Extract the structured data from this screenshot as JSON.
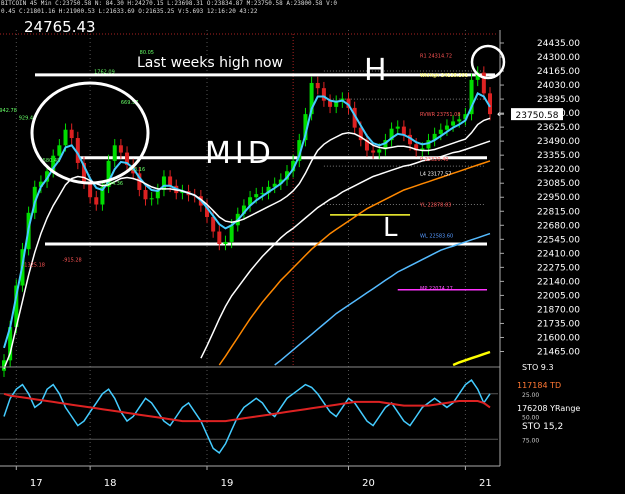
{
  "header": {
    "line1": "BITCOIN 45 Min C:23750.58 N: 84.30 H:24270.15 L:23698.31 O:23834.87 M:23750.58 A:23800.58 V:0",
    "line2": "0.45 C:21801.16 H:21900.53 L:21633.69 O:21635.25 V:5.693 12:16:20 43:22",
    "price": "24765.43"
  },
  "chart_data": {
    "type": "line",
    "title": "",
    "x_ticks": [
      "17",
      "18",
      "19",
      "20",
      "21"
    ],
    "y_ticks": [
      "24435.00",
      "24300.00",
      "24165.00",
      "24030.00",
      "23895.00",
      "23760.00",
      "23625.00",
      "23490.00",
      "23355.00",
      "23220.00",
      "23085.00",
      "22950.00",
      "22815.00",
      "22680.00",
      "22545.00",
      "22410.00",
      "22275.00",
      "22140.00",
      "22005.00",
      "21870.00",
      "21735.00",
      "21600.00",
      "21465.00"
    ],
    "ylim": [
      21335,
      24560
    ],
    "last_price_label": "23750.58",
    "annotations": {
      "last_weeks_high": "Last weeks high now",
      "h_label": "H",
      "mid_label": "MID",
      "l_label": "L"
    },
    "hlines": [
      {
        "name": "last-weeks-high-line",
        "y": 24128,
        "color": "#ffffff"
      },
      {
        "name": "mid-line",
        "y": 23330,
        "color": "#ffffff"
      },
      {
        "name": "low-line",
        "y": 22500,
        "color": "#ffffff"
      },
      {
        "name": "yellow-level",
        "y": 22780,
        "color": "#ffff33"
      },
      {
        "name": "magenta-level",
        "y": 22060,
        "color": "#ff33ff"
      }
    ],
    "level_labels": [
      {
        "text": "R1 24314.72",
        "y": 24314,
        "color": "#ff5555"
      },
      {
        "text": "WkHigh 24128.291",
        "y": 24128,
        "color": "#ffff55"
      },
      {
        "text": "RVWR 23751.08",
        "y": 23751,
        "color": "#ff5555"
      },
      {
        "text": "P 23320.40",
        "y": 23320,
        "color": "#ff5555"
      },
      {
        "text": "L4 23177.57",
        "y": 23177,
        "color": "#ffffff"
      },
      {
        "text": "YL 22878.83",
        "y": 22878,
        "color": "#ff5555"
      },
      {
        "text": "WL 22583.60",
        "y": 22583,
        "color": "#5599ff"
      },
      {
        "text": "MP 22074.27",
        "y": 22074,
        "color": "#ff55ff"
      }
    ],
    "price_labels": [
      {
        "text": "942.78",
        "x": 0.55,
        "y": 23770
      },
      {
        "text": "929.48",
        "x": 3.7,
        "y": 23700
      },
      {
        "text": "580.45",
        "x": 7.6,
        "y": 23290
      },
      {
        "text": "1762.09",
        "x": 15.95,
        "y": 24140
      },
      {
        "text": "669.97",
        "x": 20.3,
        "y": 23850
      },
      {
        "text": "473.16",
        "x": 21.4,
        "y": 23205
      },
      {
        "text": "1004.36",
        "x": 17.3,
        "y": 23070
      },
      {
        "text": "80.05",
        "x": 23.35,
        "y": 24330
      },
      {
        "text": "-1325.18",
        "x": 4.3,
        "y": 22285
      },
      {
        "text": "-915.28",
        "x": 10.8,
        "y": 22330
      }
    ],
    "series": [
      {
        "name": "close",
        "color": "#00cc00",
        "values": [
          21380,
          21700,
          22100,
          22450,
          22800,
          23050,
          23100,
          23200,
          23350,
          23450,
          23600,
          23520,
          23280,
          23090,
          22950,
          22880,
          23050,
          23300,
          23450,
          23380,
          23260,
          23180,
          23020,
          22930,
          22940,
          23020,
          23150,
          23060,
          22990,
          23010,
          22970,
          22960,
          22870,
          22760,
          22620,
          22500,
          22520,
          22680,
          22790,
          22870,
          22950,
          22980,
          22990,
          23050,
          23080,
          23120,
          23200,
          23300,
          23500,
          23750,
          24050,
          24000,
          23880,
          23820,
          23870,
          23900,
          23810,
          23620,
          23500,
          23400,
          23380,
          23410,
          23500,
          23610,
          23630,
          23550,
          23460,
          23400,
          23420,
          23500,
          23560,
          23600,
          23640,
          23680,
          23700,
          23750,
          24080,
          24150,
          23950,
          23750
        ]
      },
      {
        "name": "ema-fast",
        "color": "#44ccff",
        "values": [
          21500,
          21700,
          22000,
          22300,
          22650,
          22900,
          23050,
          23130,
          23230,
          23310,
          23430,
          23450,
          23370,
          23250,
          23130,
          23040,
          23020,
          23100,
          23220,
          23290,
          23280,
          23230,
          23140,
          23070,
          23020,
          23010,
          23060,
          23060,
          23030,
          23010,
          22990,
          22970,
          22920,
          22850,
          22770,
          22690,
          22650,
          22680,
          22730,
          22800,
          22870,
          22920,
          22960,
          23000,
          23040,
          23080,
          23140,
          23220,
          23350,
          23550,
          23800,
          23920,
          23920,
          23880,
          23870,
          23880,
          23840,
          23740,
          23640,
          23540,
          23470,
          23450,
          23470,
          23520,
          23560,
          23550,
          23520,
          23480,
          23460,
          23470,
          23500,
          23540,
          23580,
          23620,
          23650,
          23690,
          23820,
          23950,
          23920,
          23820
        ]
      },
      {
        "name": "ma-white-short",
        "color": "#ffffff",
        "values": [
          21300,
          21450,
          21700,
          21950,
          22200,
          22420,
          22600,
          22750,
          22870,
          22970,
          23070,
          23130,
          23150,
          23140,
          23110,
          23080,
          23060,
          23070,
          23100,
          23130,
          23140,
          23130,
          23110,
          23080,
          23050,
          23030,
          23030,
          23030,
          23020,
          23010,
          22990,
          22970,
          22930,
          22880,
          22820,
          22760,
          22720,
          22710,
          22720,
          22740,
          22770,
          22800,
          22830,
          22860,
          22890,
          22920,
          22960,
          23010,
          23080,
          23180,
          23300,
          23400,
          23460,
          23500,
          23530,
          23560,
          23570,
          23560,
          23530,
          23490,
          23450,
          23430,
          23420,
          23430,
          23440,
          23440,
          23430,
          23410,
          23400,
          23400,
          23410,
          23430,
          23450,
          23470,
          23490,
          23510,
          23570,
          23650,
          23690,
          23710
        ]
      },
      {
        "name": "ma-white-long",
        "color": "#ffffff",
        "values": [
          null,
          null,
          null,
          null,
          null,
          null,
          null,
          null,
          null,
          null,
          null,
          null,
          null,
          null,
          null,
          null,
          null,
          null,
          null,
          null,
          null,
          null,
          null,
          null,
          null,
          null,
          null,
          null,
          null,
          null,
          null,
          null,
          21400,
          21520,
          21650,
          21780,
          21900,
          22000,
          22080,
          22160,
          22240,
          22310,
          22380,
          22440,
          22500,
          22560,
          22610,
          22650,
          22700,
          22750,
          22800,
          22850,
          22890,
          22930,
          22960,
          23000,
          23030,
          23060,
          23090,
          23120,
          23150,
          23170,
          23190,
          23210,
          23230,
          23250,
          23260,
          23280,
          23300,
          23310,
          23330,
          23340,
          23360,
          23380,
          23390,
          23410,
          23430,
          23450,
          23470,
          23490
        ]
      },
      {
        "name": "ma-orange",
        "color": "#ff8800",
        "values": [
          null,
          null,
          null,
          null,
          null,
          null,
          null,
          null,
          null,
          null,
          null,
          null,
          null,
          null,
          null,
          null,
          null,
          null,
          null,
          null,
          null,
          null,
          null,
          null,
          null,
          null,
          null,
          null,
          null,
          null,
          null,
          null,
          null,
          null,
          null,
          21335,
          21420,
          21510,
          21600,
          21690,
          21780,
          21860,
          21940,
          22010,
          22080,
          22150,
          22210,
          22270,
          22330,
          22390,
          22450,
          22500,
          22550,
          22600,
          22640,
          22680,
          22720,
          22760,
          22800,
          22840,
          22870,
          22900,
          22930,
          22960,
          22990,
          23020,
          23040,
          23060,
          23080,
          23100,
          23120,
          23140,
          23160,
          23180,
          23200,
          23220,
          23240,
          23260,
          23280,
          23300
        ]
      },
      {
        "name": "ma-blue",
        "color": "#55bbff",
        "values": [
          null,
          null,
          null,
          null,
          null,
          null,
          null,
          null,
          null,
          null,
          null,
          null,
          null,
          null,
          null,
          null,
          null,
          null,
          null,
          null,
          null,
          null,
          null,
          null,
          null,
          null,
          null,
          null,
          null,
          null,
          null,
          null,
          null,
          null,
          null,
          null,
          null,
          null,
          null,
          null,
          null,
          null,
          null,
          null,
          21335,
          21380,
          21430,
          21480,
          21530,
          21580,
          21630,
          21680,
          21730,
          21780,
          21830,
          21870,
          21910,
          21950,
          21990,
          22030,
          22070,
          22110,
          22150,
          22190,
          22230,
          22260,
          22290,
          22320,
          22350,
          22380,
          22410,
          22440,
          22460,
          22480,
          22500,
          22520,
          22540,
          22560,
          22580,
          22600
        ]
      },
      {
        "name": "ma-yellow",
        "color": "#ffff00",
        "values": [
          null,
          null,
          null,
          null,
          null,
          null,
          null,
          null,
          null,
          null,
          null,
          null,
          null,
          null,
          null,
          null,
          null,
          null,
          null,
          null,
          null,
          null,
          null,
          null,
          null,
          null,
          null,
          null,
          null,
          null,
          null,
          null,
          null,
          null,
          null,
          null,
          null,
          null,
          null,
          null,
          null,
          null,
          null,
          null,
          null,
          null,
          null,
          null,
          null,
          null,
          null,
          null,
          null,
          null,
          null,
          null,
          null,
          null,
          null,
          null,
          null,
          null,
          null,
          null,
          null,
          null,
          null,
          null,
          null,
          null,
          null,
          null,
          null,
          21335,
          21360,
          21380,
          21400,
          21420,
          21440,
          21460
        ]
      }
    ]
  },
  "oscillator": {
    "ticks": [
      "25.00",
      "50.00",
      "75.00"
    ],
    "labels": {
      "td": "117184 TD",
      "yrange": "176208 YRange",
      "sto": "STO  15,2",
      "sto_top": "STO  9.3"
    },
    "series": [
      {
        "name": "sto-blue",
        "color": "#44ccff",
        "values": [
          50,
          30,
          20,
          15,
          25,
          40,
          35,
          20,
          15,
          25,
          40,
          50,
          60,
          55,
          45,
          35,
          25,
          20,
          30,
          45,
          55,
          50,
          40,
          30,
          35,
          45,
          55,
          60,
          50,
          40,
          35,
          45,
          55,
          70,
          85,
          90,
          80,
          65,
          50,
          40,
          35,
          30,
          35,
          45,
          50,
          40,
          30,
          25,
          20,
          15,
          18,
          25,
          35,
          45,
          50,
          40,
          30,
          35,
          45,
          55,
          60,
          50,
          40,
          35,
          45,
          55,
          60,
          50,
          40,
          35,
          30,
          35,
          40,
          35,
          25,
          15,
          10,
          20,
          35,
          25
        ]
      },
      {
        "name": "sto-red",
        "color": "#dd2222",
        "values": [
          25,
          27,
          28,
          29,
          30,
          31,
          32,
          33,
          34,
          35,
          36,
          37,
          38,
          39,
          40,
          41,
          42,
          43,
          44,
          45,
          46,
          47,
          48,
          49,
          50,
          51,
          52,
          53,
          54,
          55,
          55,
          55,
          55,
          55,
          55,
          55,
          55,
          54,
          53,
          52,
          51,
          50,
          49,
          48,
          47,
          46,
          45,
          44,
          43,
          42,
          41,
          40,
          39,
          38,
          37,
          36,
          35,
          34,
          34,
          34,
          34,
          34,
          35,
          36,
          37,
          38,
          38,
          38,
          38,
          38,
          37,
          36,
          35,
          34,
          33,
          33,
          33,
          33,
          35,
          40
        ]
      }
    ]
  }
}
